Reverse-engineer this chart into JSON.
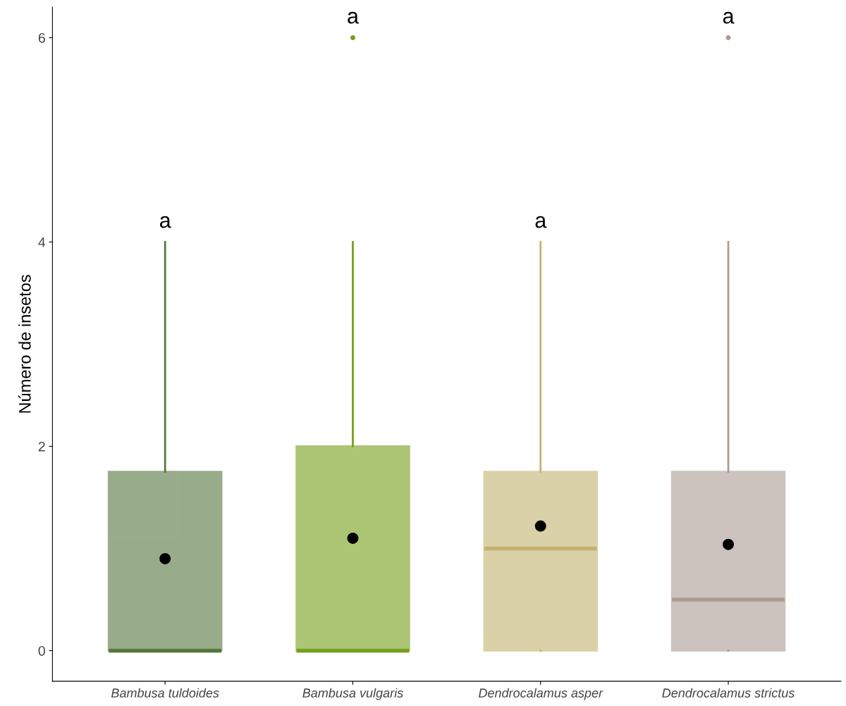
{
  "chart_data": {
    "type": "box",
    "ylabel": "Número de insetos",
    "categories": [
      "Bambusa tuldoides",
      "Bambusa vulgaris",
      "Dendrocalamus asper",
      "Dendrocalamus strictus"
    ],
    "colors": [
      "#56763e",
      "#76a01a",
      "#c4b36f",
      "#ab9c93"
    ],
    "boxes": [
      {
        "low": 0,
        "q1": 0,
        "median": 0,
        "q3": 1.75,
        "high": 4,
        "mean": 0.9
      },
      {
        "low": 0,
        "q1": 0,
        "median": 0,
        "q3": 2,
        "high": 4,
        "mean": 1.1,
        "outliers": [
          6
        ]
      },
      {
        "low": 0,
        "q1": 0,
        "median": 1,
        "q3": 1.75,
        "high": 4,
        "mean": 1.22
      },
      {
        "low": 0,
        "q1": 0,
        "median": 0.5,
        "q3": 1.75,
        "high": 4,
        "mean": 1.04,
        "outliers": [
          6
        ]
      }
    ],
    "ylim": [
      -0.3,
      6.3
    ],
    "yticks": [
      0,
      2,
      4,
      6
    ],
    "grid": false,
    "legend": false,
    "annotations": [
      "a",
      "a",
      "a",
      "a"
    ]
  }
}
